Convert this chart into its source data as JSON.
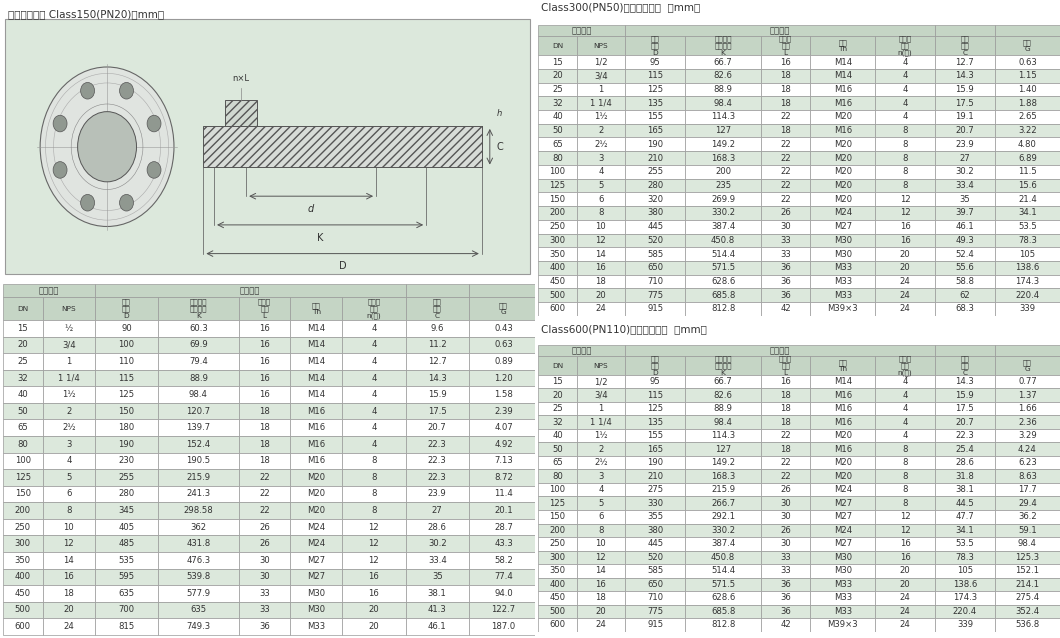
{
  "title_left": "钢制管法兰盖 Class150(PN20)（mm）",
  "title_right1": "Class300(PN50)钢制管法兰盖  （mm）",
  "title_right2": "Class600(PN110)钢制管法兰盖  （mm）",
  "bg_color": "#dce8dc",
  "header_bg": "#c5d5c5",
  "row_even_bg": "#ffffff",
  "row_odd_bg": "#dce8dc",
  "table_border": "#aaaaaa",
  "text_color": "#333333",
  "title_color": "#333333",
  "col_labels": [
    "DN",
    "NPS",
    "法兰\n外径\nD",
    "螺栓孔中\n心圆直径\nK",
    "螺栓孔\n直径\nL",
    "螺栓\nTh",
    "螺栓孔\n数量\nn(个)",
    "法兰\n厚度\nC",
    "重量\nG"
  ],
  "span1_label": "公称尺寸",
  "span2_label": "连接尺寸",
  "table_left": [
    [
      "15",
      "½",
      "90",
      "60.3",
      "16",
      "M14",
      "4",
      "9.6",
      "0.43"
    ],
    [
      "20",
      "3/4",
      "100",
      "69.9",
      "16",
      "M14",
      "4",
      "11.2",
      "0.63"
    ],
    [
      "25",
      "1",
      "110",
      "79.4",
      "16",
      "M14",
      "4",
      "12.7",
      "0.89"
    ],
    [
      "32",
      "1 1/4",
      "115",
      "88.9",
      "16",
      "M14",
      "4",
      "14.3",
      "1.20"
    ],
    [
      "40",
      "1½",
      "125",
      "98.4",
      "16",
      "M14",
      "4",
      "15.9",
      "1.58"
    ],
    [
      "50",
      "2",
      "150",
      "120.7",
      "18",
      "M16",
      "4",
      "17.5",
      "2.39"
    ],
    [
      "65",
      "2½",
      "180",
      "139.7",
      "18",
      "M16",
      "4",
      "20.7",
      "4.07"
    ],
    [
      "80",
      "3",
      "190",
      "152.4",
      "18",
      "M16",
      "4",
      "22.3",
      "4.92"
    ],
    [
      "100",
      "4",
      "230",
      "190.5",
      "18",
      "M16",
      "8",
      "22.3",
      "7.13"
    ],
    [
      "125",
      "5",
      "255",
      "215.9",
      "22",
      "M20",
      "8",
      "22.3",
      "8.72"
    ],
    [
      "150",
      "6",
      "280",
      "241.3",
      "22",
      "M20",
      "8",
      "23.9",
      "11.4"
    ],
    [
      "200",
      "8",
      "345",
      "298.58",
      "22",
      "M20",
      "8",
      "27",
      "20.1"
    ],
    [
      "250",
      "10",
      "405",
      "362",
      "26",
      "M24",
      "12",
      "28.6",
      "28.7"
    ],
    [
      "300",
      "12",
      "485",
      "431.8",
      "26",
      "M24",
      "12",
      "30.2",
      "43.3"
    ],
    [
      "350",
      "14",
      "535",
      "476.3",
      "30",
      "M27",
      "12",
      "33.4",
      "58.2"
    ],
    [
      "400",
      "16",
      "595",
      "539.8",
      "30",
      "M27",
      "16",
      "35",
      "77.4"
    ],
    [
      "450",
      "18",
      "635",
      "577.9",
      "33",
      "M30",
      "16",
      "38.1",
      "94.0"
    ],
    [
      "500",
      "20",
      "700",
      "635",
      "33",
      "M30",
      "20",
      "41.3",
      "122.7"
    ],
    [
      "600",
      "24",
      "815",
      "749.3",
      "36",
      "M33",
      "20",
      "46.1",
      "187.0"
    ]
  ],
  "table_right1": [
    [
      "15",
      "1/2",
      "95",
      "66.7",
      "16",
      "M14",
      "4",
      "12.7",
      "0.63"
    ],
    [
      "20",
      "3/4",
      "115",
      "82.6",
      "18",
      "M14",
      "4",
      "14.3",
      "1.15"
    ],
    [
      "25",
      "1",
      "125",
      "88.9",
      "18",
      "M16",
      "4",
      "15.9",
      "1.40"
    ],
    [
      "32",
      "1 1/4",
      "135",
      "98.4",
      "18",
      "M16",
      "4",
      "17.5",
      "1.88"
    ],
    [
      "40",
      "1½",
      "155",
      "114.3",
      "22",
      "M20",
      "4",
      "19.1",
      "2.65"
    ],
    [
      "50",
      "2",
      "165",
      "127",
      "18",
      "M16",
      "8",
      "20.7",
      "3.22"
    ],
    [
      "65",
      "2½",
      "190",
      "149.2",
      "22",
      "M20",
      "8",
      "23.9",
      "4.80"
    ],
    [
      "80",
      "3",
      "210",
      "168.3",
      "22",
      "M20",
      "8",
      "27",
      "6.89"
    ],
    [
      "100",
      "4",
      "255",
      "200",
      "22",
      "M20",
      "8",
      "30.2",
      "11.5"
    ],
    [
      "125",
      "5",
      "280",
      "235",
      "22",
      "M20",
      "8",
      "33.4",
      "15.6"
    ],
    [
      "150",
      "6",
      "320",
      "269.9",
      "22",
      "M20",
      "12",
      "35",
      "21.4"
    ],
    [
      "200",
      "8",
      "380",
      "330.2",
      "26",
      "M24",
      "12",
      "39.7",
      "34.1"
    ],
    [
      "250",
      "10",
      "445",
      "387.4",
      "30",
      "M27",
      "16",
      "46.1",
      "53.5"
    ],
    [
      "300",
      "12",
      "520",
      "450.8",
      "33",
      "M30",
      "16",
      "49.3",
      "78.3"
    ],
    [
      "350",
      "14",
      "585",
      "514.4",
      "33",
      "M30",
      "20",
      "52.4",
      "105"
    ],
    [
      "400",
      "16",
      "650",
      "571.5",
      "36",
      "M33",
      "20",
      "55.6",
      "138.6"
    ],
    [
      "450",
      "18",
      "710",
      "628.6",
      "36",
      "M33",
      "24",
      "58.8",
      "174.3"
    ],
    [
      "500",
      "20",
      "775",
      "685.8",
      "36",
      "M33",
      "24",
      "62",
      "220.4"
    ],
    [
      "600",
      "24",
      "915",
      "812.8",
      "42",
      "M39×3",
      "24",
      "68.3",
      "339"
    ]
  ],
  "table_right2": [
    [
      "15",
      "1/2",
      "95",
      "66.7",
      "16",
      "M14",
      "4",
      "14.3",
      "0.77"
    ],
    [
      "20",
      "3/4",
      "115",
      "82.6",
      "18",
      "M16",
      "4",
      "15.9",
      "1.37"
    ],
    [
      "25",
      "1",
      "125",
      "88.9",
      "18",
      "M16",
      "4",
      "17.5",
      "1.66"
    ],
    [
      "32",
      "1 1/4",
      "135",
      "98.4",
      "18",
      "M16",
      "4",
      "20.7",
      "2.36"
    ],
    [
      "40",
      "1½",
      "155",
      "114.3",
      "22",
      "M20",
      "4",
      "22.3",
      "3.29"
    ],
    [
      "50",
      "2",
      "165",
      "127",
      "18",
      "M16",
      "8",
      "25.4",
      "4.24"
    ],
    [
      "65",
      "2½",
      "190",
      "149.2",
      "22",
      "M20",
      "8",
      "28.6",
      "6.23"
    ],
    [
      "80",
      "3",
      "210",
      "168.3",
      "22",
      "M20",
      "8",
      "31.8",
      "8.63"
    ],
    [
      "100",
      "4",
      "275",
      "215.9",
      "26",
      "M24",
      "8",
      "38.1",
      "17.7"
    ],
    [
      "125",
      "5",
      "330",
      "266.7",
      "30",
      "M27",
      "8",
      "44.5",
      "29.4"
    ],
    [
      "150",
      "6",
      "355",
      "292.1",
      "30",
      "M27",
      "12",
      "47.7",
      "36.2"
    ],
    [
      "200",
      "8",
      "380",
      "330.2",
      "26",
      "M24",
      "12",
      "34.1",
      "59.1"
    ],
    [
      "250",
      "10",
      "445",
      "387.4",
      "30",
      "M27",
      "16",
      "53.5",
      "98.4"
    ],
    [
      "300",
      "12",
      "520",
      "450.8",
      "33",
      "M30",
      "16",
      "78.3",
      "125.3"
    ],
    [
      "350",
      "14",
      "585",
      "514.4",
      "33",
      "M30",
      "20",
      "105",
      "152.1"
    ],
    [
      "400",
      "16",
      "650",
      "571.5",
      "36",
      "M33",
      "20",
      "138.6",
      "214.1"
    ],
    [
      "450",
      "18",
      "710",
      "628.6",
      "36",
      "M33",
      "24",
      "174.3",
      "275.4"
    ],
    [
      "500",
      "20",
      "775",
      "685.8",
      "36",
      "M33",
      "24",
      "220.4",
      "352.4"
    ],
    [
      "600",
      "24",
      "915",
      "812.8",
      "42",
      "M39×3",
      "24",
      "339",
      "536.8"
    ]
  ]
}
